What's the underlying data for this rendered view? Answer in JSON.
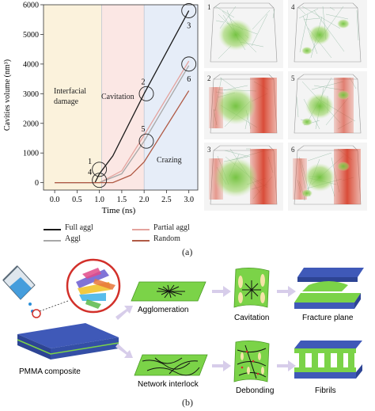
{
  "chart_data": {
    "type": "line",
    "xlabel": "Time (ns)",
    "ylabel": "Cavities volume (nm³)",
    "xlim": [
      -0.25,
      3.2
    ],
    "ylim": [
      -250,
      6000
    ],
    "xticks": [
      "0.0",
      "0.5",
      "1.0",
      "1.5",
      "2.0",
      "2.5",
      "3.0"
    ],
    "yticks": [
      "0",
      "1000",
      "2000",
      "3000",
      "4000",
      "5000",
      "6000"
    ],
    "regions": [
      {
        "label_lines": [
          "Interfacial",
          "damage"
        ],
        "x_range": [
          -0.25,
          1.05
        ],
        "color": "#fbf2dc"
      },
      {
        "label_lines": [
          "Cavitation"
        ],
        "x_range": [
          1.05,
          2.0
        ],
        "color": "#fbe7e4"
      },
      {
        "label_lines": [
          "Crazing"
        ],
        "x_range": [
          2.0,
          3.2
        ],
        "color": "#e6edf8"
      }
    ],
    "series": [
      {
        "name": "Full aggl",
        "color": "#1a1a1a",
        "x": [
          0.0,
          0.9,
          1.0,
          1.3,
          2.0,
          3.0
        ],
        "y": [
          0,
          0,
          300,
          900,
          3000,
          5800
        ]
      },
      {
        "name": "Partial aggl",
        "color": "#e4a39e",
        "x": [
          0.0,
          1.0,
          1.5,
          2.0,
          3.0
        ],
        "y": [
          0,
          0,
          400,
          1600,
          4100
        ]
      },
      {
        "name": "Aggl",
        "color": "#a8a8a8",
        "x": [
          0.0,
          1.0,
          1.5,
          2.0,
          3.0
        ],
        "y": [
          0,
          0,
          300,
          1400,
          3950
        ]
      },
      {
        "name": "Random",
        "color": "#b05a45",
        "x": [
          0.0,
          1.3,
          1.7,
          2.0,
          3.0
        ],
        "y": [
          0,
          0,
          250,
          700,
          3100
        ]
      }
    ],
    "annotations": [
      {
        "label": "1",
        "x": 1.0,
        "y": 450
      },
      {
        "label": "4",
        "x": 1.0,
        "y": 80
      },
      {
        "label": "2",
        "x": 2.05,
        "y": 3000
      },
      {
        "label": "5",
        "x": 2.05,
        "y": 1400
      },
      {
        "label": "3",
        "x": 3.0,
        "y": 5800
      },
      {
        "label": "6",
        "x": 3.0,
        "y": 4000
      }
    ]
  },
  "legend": {
    "items": [
      {
        "label": "Full aggl",
        "color": "#1a1a1a"
      },
      {
        "label": "Partial aggl",
        "color": "#e4a39e"
      },
      {
        "label": "Aggl",
        "color": "#a8a8a8"
      },
      {
        "label": "Random",
        "color": "#b05a45"
      }
    ]
  },
  "simulation_panels": [
    "1",
    "4",
    "2",
    "5",
    "3",
    "6"
  ],
  "panel_labels": {
    "a": "(a)",
    "b": "(b)"
  },
  "schematic": {
    "composite_label": "PMMA composite",
    "top_row": [
      "Agglomeration",
      "Cavitation",
      "Fracture plane"
    ],
    "bottom_row": [
      "Network interlock",
      "Debonding",
      "Fibrils"
    ]
  }
}
